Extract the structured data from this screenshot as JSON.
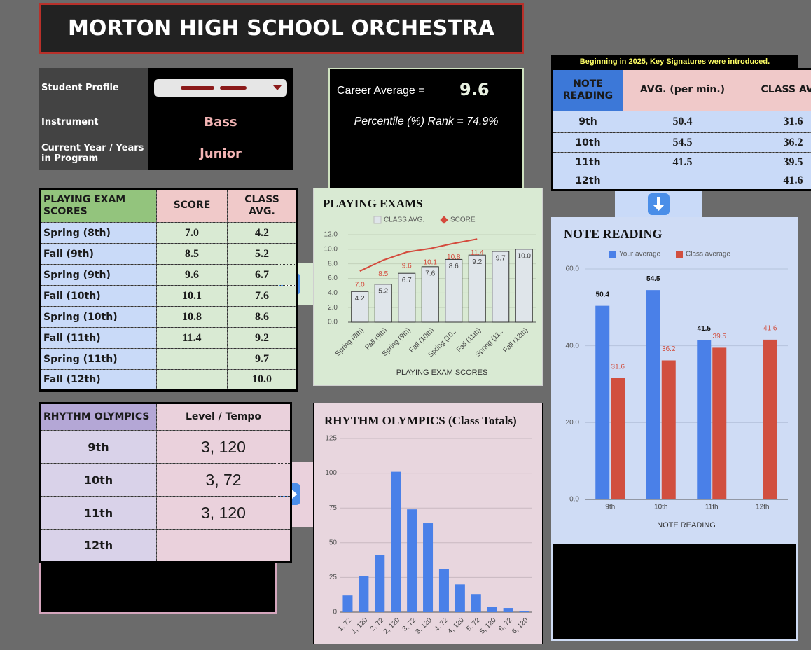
{
  "header": {
    "title": "MORTON HIGH SCHOOL ORCHESTRA"
  },
  "profile": {
    "rows": [
      {
        "label": "Student Profile"
      },
      {
        "label": "Instrument",
        "value": "Bass"
      },
      {
        "label": "Current Year / Years in Program",
        "value": "Junior"
      }
    ]
  },
  "career": {
    "label": "Career Average =",
    "value": 9.6,
    "percentile": "Percentile (%) Rank = 74.9%"
  },
  "note_table": {
    "notice": "Beginning in 2025, Key Signatures were introduced.",
    "headers": [
      "NOTE READING",
      "AVG. (per min.)",
      "CLASS AVG."
    ],
    "rows": [
      [
        "9th",
        "50.4",
        "31.6"
      ],
      [
        "10th",
        "54.5",
        "36.2"
      ],
      [
        "11th",
        "41.5",
        "39.5"
      ],
      [
        "12th",
        null,
        "41.6"
      ]
    ]
  },
  "playing_table": {
    "headers": [
      "PLAYING EXAM SCORES",
      "SCORE",
      "CLASS AVG."
    ],
    "rows": [
      [
        "Spring (8th)",
        "7.0",
        "4.2"
      ],
      [
        "Fall (9th)",
        "8.5",
        "5.2"
      ],
      [
        "Spring (9th)",
        "9.6",
        "6.7"
      ],
      [
        "Fall (10th)",
        "10.1",
        "7.6"
      ],
      [
        "Spring (10th)",
        "10.8",
        "8.6"
      ],
      [
        "Fall (11th)",
        "11.4",
        "9.2"
      ],
      [
        "Spring (11th)",
        null,
        "9.7"
      ],
      [
        "Fall (12th)",
        null,
        "10.0"
      ]
    ]
  },
  "rhythm_table": {
    "headers": [
      "RHYTHM OLYMPICS",
      "Level / Tempo"
    ],
    "rows": [
      [
        "9th",
        "3, 120"
      ],
      [
        "10th",
        "3, 72"
      ],
      [
        "11th",
        "3, 120"
      ],
      [
        "12th",
        null
      ]
    ]
  },
  "chart_data": [
    {
      "type": "combo",
      "title": "PLAYING EXAMS",
      "x_label": "PLAYING EXAM SCORES",
      "categories": [
        "Spring (8th)",
        "Fall (9th)",
        "Spring (9th)",
        "Fall (10th)",
        "Spring (10...",
        "Fall (11th)",
        "Spring (11...",
        "Fall (12th)"
      ],
      "series": [
        {
          "name": "CLASS AVG.",
          "type": "bar",
          "color": "#dfe5ea",
          "values": [
            4.2,
            5.2,
            6.7,
            7.6,
            8.6,
            9.2,
            9.7,
            10
          ],
          "value_labels": [
            "4.2",
            "5.2",
            "6.7",
            "7.6",
            "8.6",
            "9.2",
            "9.7",
            "10.0"
          ]
        },
        {
          "name": "SCORE",
          "type": "line",
          "color": "#d44a3c",
          "values": [
            7,
            8.5,
            9.6,
            10.1,
            10.8,
            11.4,
            null,
            null
          ],
          "value_labels": [
            "7.0",
            "8.5",
            "9.6",
            "10.1",
            "10.8",
            "11.4",
            null,
            null
          ]
        }
      ],
      "ylim": [
        0,
        12
      ],
      "yticks": [
        {
          "value": 0,
          "label": "0.0"
        },
        {
          "value": 2,
          "label": "2.0"
        },
        {
          "value": 4,
          "label": "4.0"
        },
        {
          "value": 6,
          "label": "6.0"
        },
        {
          "value": 8,
          "label": "8.0"
        },
        {
          "value": 10,
          "label": "10.0"
        },
        {
          "value": 12,
          "label": "12.0"
        }
      ],
      "grid": true,
      "legend": "top"
    },
    {
      "type": "bar",
      "title": "NOTE READING",
      "x_label": "NOTE READING",
      "categories": [
        "9th",
        "10th",
        "11th",
        "12th"
      ],
      "series": [
        {
          "name": "Your average",
          "type": "bar",
          "color": "#4a80e8",
          "values": [
            50.4,
            54.5,
            41.5,
            null
          ]
        },
        {
          "name": "Class average",
          "type": "bar",
          "color": "#d14f3f",
          "values": [
            31.6,
            36.2,
            39.5,
            41.6
          ]
        }
      ],
      "ylim": [
        0,
        60
      ],
      "yticks": [
        {
          "value": 0,
          "label": "0.0"
        },
        {
          "value": 20,
          "label": "20.0"
        },
        {
          "value": 40,
          "label": "40.0"
        },
        {
          "value": 60,
          "label": "60.0"
        }
      ],
      "grid": true,
      "legend": "top"
    },
    {
      "type": "bar",
      "title": "RHYTHM OLYMPICS (Class Totals)",
      "categories": [
        "1, 72",
        "1, 120",
        "2, 72",
        "2, 120",
        "3, 72",
        "3, 120",
        "4, 72",
        "4, 120",
        "5, 72",
        "5, 120",
        "6, 72",
        "6, 120"
      ],
      "values": [
        12,
        26,
        41,
        101,
        74,
        64,
        31,
        20,
        13,
        4,
        3,
        1
      ],
      "color": "#4a80e8",
      "ylim": [
        0,
        125
      ],
      "yticks": [
        0,
        25,
        50,
        75,
        100,
        125
      ],
      "grid": true
    }
  ]
}
